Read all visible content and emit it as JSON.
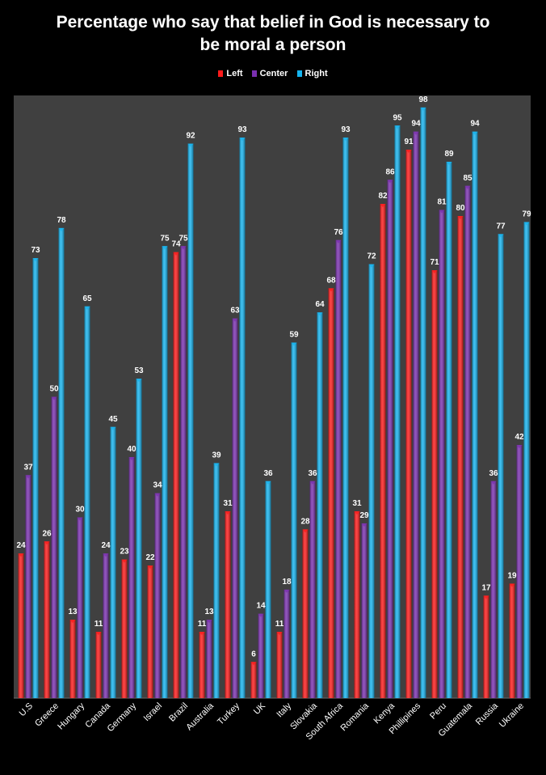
{
  "chart_data": {
    "type": "bar",
    "title": "Percentage who say that belief in God is necessary to be moral a person",
    "title_line1": "Percentage who say that belief in God is necessary to",
    "title_line2": "be moral a person",
    "legend_position": "top-center",
    "grid": false,
    "plot_background": "#404040",
    "ylim": [
      0,
      100
    ],
    "categories": [
      "U.S",
      "Greece",
      "Hungary",
      "Canada",
      "Germany",
      "Israel",
      "Brazil",
      "Australia",
      "Turkey",
      "UK",
      "Italy",
      "Slovakia",
      "South Africa",
      "Romania",
      "Kenya",
      "Phillipines",
      "Peru",
      "Guatemala",
      "Russia",
      "Ukraine"
    ],
    "series": [
      {
        "name": "Left",
        "color": "#ff1a1a",
        "values": [
          24,
          26,
          13,
          11,
          23,
          22,
          74,
          11,
          31,
          6,
          11,
          28,
          68,
          31,
          82,
          91,
          71,
          80,
          17,
          19
        ]
      },
      {
        "name": "Center",
        "color": "#7a2fb0",
        "values": [
          37,
          50,
          30,
          24,
          40,
          34,
          75,
          13,
          63,
          14,
          18,
          36,
          76,
          29,
          86,
          94,
          81,
          85,
          36,
          42
        ]
      },
      {
        "name": "Right",
        "color": "#14b4f0",
        "values": [
          73,
          78,
          65,
          45,
          53,
          75,
          92,
          39,
          93,
          36,
          59,
          64,
          93,
          72,
          95,
          98,
          89,
          94,
          77,
          79
        ]
      }
    ]
  }
}
